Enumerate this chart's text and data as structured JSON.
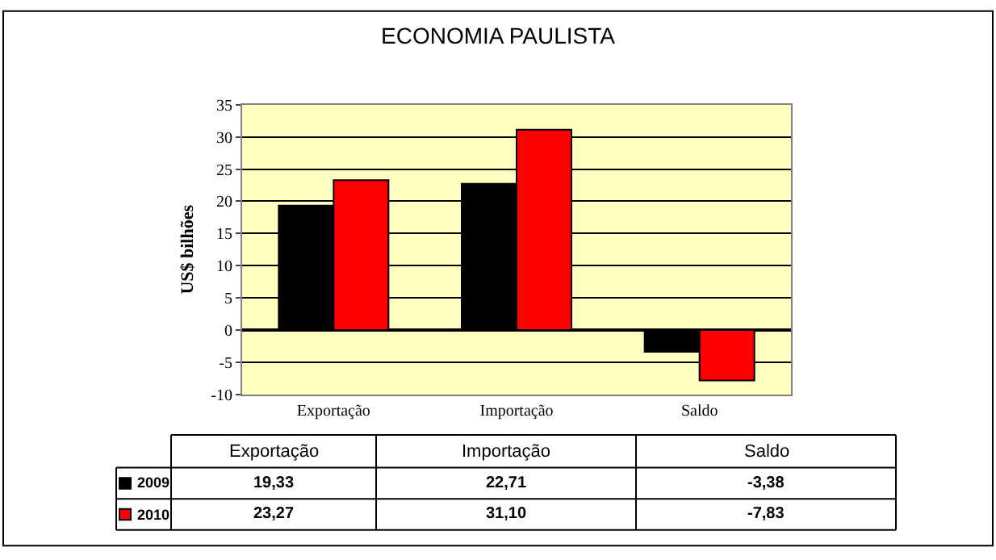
{
  "chart_data": {
    "type": "bar",
    "title": "ECONOMIA PAULISTA",
    "ylabel": "US$ bilhões",
    "categories": [
      "Exportação",
      "Importação",
      "Saldo"
    ],
    "series": [
      {
        "name": "2009",
        "color": "#000000",
        "values": [
          19.33,
          22.71,
          -3.38
        ],
        "value_labels": [
          "19,33",
          "22,71",
          "-3,38"
        ]
      },
      {
        "name": "2010",
        "color": "#ff0000",
        "values": [
          23.27,
          31.1,
          -7.83
        ],
        "value_labels": [
          "23,27",
          "31,10",
          "-7,83"
        ]
      }
    ],
    "ylim": [
      -10,
      35
    ],
    "yticks": [
      -10,
      -5,
      0,
      5,
      10,
      15,
      20,
      25,
      30,
      35
    ],
    "grid": "y",
    "legend": "bottom left"
  }
}
